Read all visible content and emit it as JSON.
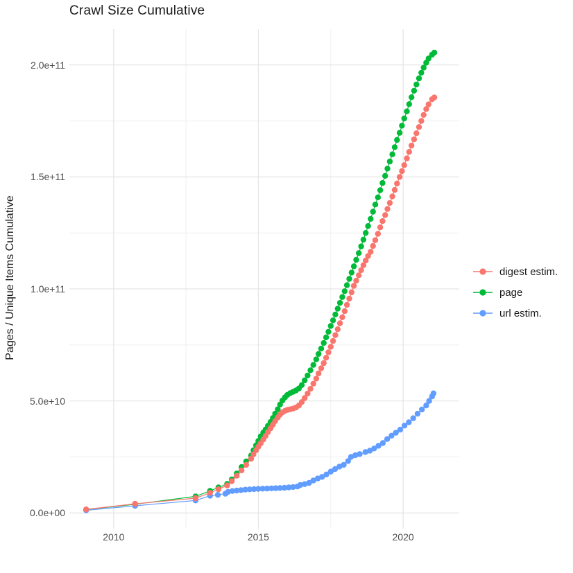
{
  "title": "Crawl Size Cumulative",
  "y_axis": {
    "label": "Pages / Unique Items Cumulative",
    "tick_labels": [
      "0.0e+00",
      "5.0e+10",
      "1.0e+11",
      "1.5e+11",
      "2.0e+11"
    ],
    "tick_values": [
      0,
      50,
      100,
      150,
      200
    ],
    "minor_values": [
      25,
      75,
      125,
      175
    ]
  },
  "x_axis": {
    "tick_labels": [
      "2010",
      "2015",
      "2020"
    ],
    "tick_values": [
      2010,
      2015,
      2020
    ],
    "minor_values": [
      2012.5,
      2017.5
    ]
  },
  "legend": {
    "position": "right",
    "items": [
      {
        "id": "digest-estim",
        "label": "digest estim.",
        "color": "#F8766D"
      },
      {
        "id": "page",
        "label": "page",
        "color": "#00BA38"
      },
      {
        "id": "url-estim",
        "label": "url estim.",
        "color": "#619CFF"
      }
    ]
  },
  "colors": {
    "background": "#FFFFFF",
    "grid_major": "#E4E4E4",
    "grid_minor": "#EFEFEF",
    "tick_text": "#4D4D4D",
    "title_text": "#1A1A1A"
  },
  "chart_data": {
    "type": "line",
    "title": "Crawl Size Cumulative",
    "xlabel": "",
    "ylabel": "Pages / Unique Items Cumulative",
    "unit": "pages, billions (1e9); y tick 50 = 5.0e+10",
    "xlim": [
      2008.47,
      2021.94
    ],
    "ylim": [
      -7,
      216
    ],
    "grid": true,
    "legend_position": "right",
    "point_radius": 4.2,
    "draw_order": [
      "page",
      "url estim.",
      "digest estim."
    ],
    "series": [
      {
        "name": "page",
        "id": "page",
        "color": "#00BA38",
        "points": [
          [
            2009.05,
            1.5
          ],
          [
            2010.74,
            3.9
          ],
          [
            2012.83,
            7.4
          ],
          [
            2013.33,
            9.9
          ],
          [
            2013.62,
            11.4
          ],
          [
            2013.92,
            13
          ],
          [
            2014.08,
            15
          ],
          [
            2014.25,
            17.6
          ],
          [
            2014.42,
            20.5
          ],
          [
            2014.58,
            23
          ],
          [
            2014.75,
            25.7
          ],
          [
            2014.83,
            28
          ],
          [
            2014.92,
            30.2
          ],
          [
            2015,
            32.2
          ],
          [
            2015.08,
            34.2
          ],
          [
            2015.17,
            35.9
          ],
          [
            2015.25,
            37.3
          ],
          [
            2015.33,
            38.9
          ],
          [
            2015.42,
            40.6
          ],
          [
            2015.5,
            42.4
          ],
          [
            2015.58,
            44.3
          ],
          [
            2015.67,
            46.3
          ],
          [
            2015.75,
            48.4
          ],
          [
            2015.83,
            50.2
          ],
          [
            2015.92,
            51.6
          ],
          [
            2016,
            52.7
          ],
          [
            2016.1,
            53.5
          ],
          [
            2016.2,
            54.1
          ],
          [
            2016.3,
            54.7
          ],
          [
            2016.4,
            55.6
          ],
          [
            2016.5,
            57.1
          ],
          [
            2016.6,
            59.2
          ],
          [
            2016.7,
            61.4
          ],
          [
            2016.8,
            63.7
          ],
          [
            2016.9,
            66.1
          ],
          [
            2017,
            68.6
          ],
          [
            2017.08,
            71
          ],
          [
            2017.17,
            73.4
          ],
          [
            2017.26,
            75.9
          ],
          [
            2017.34,
            78.4
          ],
          [
            2017.42,
            80.9
          ],
          [
            2017.5,
            83.5
          ],
          [
            2017.58,
            86
          ],
          [
            2017.66,
            88.6
          ],
          [
            2017.74,
            91.2
          ],
          [
            2017.82,
            93.8
          ],
          [
            2017.9,
            96.4
          ],
          [
            2017.98,
            99
          ],
          [
            2018.06,
            101.7
          ],
          [
            2018.14,
            104.5
          ],
          [
            2018.22,
            107.3
          ],
          [
            2018.3,
            110.1
          ],
          [
            2018.38,
            113
          ],
          [
            2018.47,
            116
          ],
          [
            2018.55,
            119
          ],
          [
            2018.63,
            122
          ],
          [
            2018.71,
            125
          ],
          [
            2018.79,
            128.1
          ],
          [
            2018.88,
            131.3
          ],
          [
            2018.96,
            134.5
          ],
          [
            2019.04,
            137.7
          ],
          [
            2019.13,
            140.9
          ],
          [
            2019.21,
            144.1
          ],
          [
            2019.29,
            147.3
          ],
          [
            2019.38,
            150.5
          ],
          [
            2019.46,
            153.7
          ],
          [
            2019.54,
            156.9
          ],
          [
            2019.63,
            160.1
          ],
          [
            2019.71,
            163.3
          ],
          [
            2019.79,
            166.5
          ],
          [
            2019.88,
            169.7
          ],
          [
            2019.96,
            172.9
          ],
          [
            2020.04,
            176.1
          ],
          [
            2020.13,
            179.3
          ],
          [
            2020.21,
            182.5
          ],
          [
            2020.29,
            185.6
          ],
          [
            2020.38,
            188.5
          ],
          [
            2020.46,
            191.3
          ],
          [
            2020.55,
            194
          ],
          [
            2020.63,
            196.5
          ],
          [
            2020.71,
            198.8
          ],
          [
            2020.8,
            201
          ],
          [
            2020.88,
            202.9
          ],
          [
            2021,
            204.6
          ],
          [
            2021.08,
            205.5
          ]
        ]
      },
      {
        "name": "url estim.",
        "id": "url-estim",
        "color": "#619CFF",
        "points": [
          [
            2009.05,
            1.2
          ],
          [
            2010.74,
            3.2
          ],
          [
            2012.83,
            5.6
          ],
          [
            2013.33,
            7.7
          ],
          [
            2013.6,
            8.1
          ],
          [
            2013.86,
            8.6
          ],
          [
            2013.95,
            9.4
          ],
          [
            2014.1,
            9.8
          ],
          [
            2014.25,
            10
          ],
          [
            2014.4,
            10.2
          ],
          [
            2014.55,
            10.4
          ],
          [
            2014.7,
            10.55
          ],
          [
            2014.85,
            10.65
          ],
          [
            2015,
            10.75
          ],
          [
            2015.15,
            10.85
          ],
          [
            2015.3,
            10.9
          ],
          [
            2015.45,
            11
          ],
          [
            2015.6,
            11.05
          ],
          [
            2015.75,
            11.15
          ],
          [
            2015.9,
            11.25
          ],
          [
            2016.05,
            11.4
          ],
          [
            2016.2,
            11.6
          ],
          [
            2016.35,
            11.8
          ],
          [
            2016.45,
            12.5
          ],
          [
            2016.6,
            12.9
          ],
          [
            2016.75,
            13.4
          ],
          [
            2016.9,
            14.5
          ],
          [
            2017.05,
            15.4
          ],
          [
            2017.2,
            16.1
          ],
          [
            2017.35,
            17.2
          ],
          [
            2017.5,
            18.5
          ],
          [
            2017.65,
            19.6
          ],
          [
            2017.8,
            20.7
          ],
          [
            2017.95,
            21.5
          ],
          [
            2018.1,
            23.2
          ],
          [
            2018.2,
            25
          ],
          [
            2018.35,
            25.8
          ],
          [
            2018.5,
            26.3
          ],
          [
            2018.7,
            27.2
          ],
          [
            2018.85,
            27.8
          ],
          [
            2019,
            28.8
          ],
          [
            2019.15,
            30
          ],
          [
            2019.3,
            31.2
          ],
          [
            2019.45,
            33
          ],
          [
            2019.6,
            34.5
          ],
          [
            2019.75,
            35.8
          ],
          [
            2019.9,
            37.2
          ],
          [
            2020.05,
            39
          ],
          [
            2020.2,
            40.5
          ],
          [
            2020.35,
            42.3
          ],
          [
            2020.5,
            44.3
          ],
          [
            2020.65,
            46.2
          ],
          [
            2020.8,
            48
          ],
          [
            2020.9,
            50
          ],
          [
            2021,
            52
          ],
          [
            2021.05,
            53.4
          ]
        ]
      },
      {
        "name": "digest estim.",
        "id": "digest-estim",
        "color": "#F8766D",
        "points": [
          [
            2009.05,
            1.6
          ],
          [
            2010.74,
            4.1
          ],
          [
            2012.83,
            6.6
          ],
          [
            2013.33,
            9
          ],
          [
            2013.62,
            10.6
          ],
          [
            2013.92,
            12.3
          ],
          [
            2014.08,
            14.2
          ],
          [
            2014.25,
            16.6
          ],
          [
            2014.42,
            19
          ],
          [
            2014.58,
            21.5
          ],
          [
            2014.75,
            24.2
          ],
          [
            2014.83,
            26.2
          ],
          [
            2014.92,
            28
          ],
          [
            2015,
            29.6
          ],
          [
            2015.08,
            31.1
          ],
          [
            2015.17,
            32.8
          ],
          [
            2015.25,
            34.4
          ],
          [
            2015.33,
            36.1
          ],
          [
            2015.42,
            37.8
          ],
          [
            2015.5,
            39.4
          ],
          [
            2015.58,
            41
          ],
          [
            2015.67,
            42.6
          ],
          [
            2015.75,
            43.9
          ],
          [
            2015.83,
            44.9
          ],
          [
            2015.92,
            45.6
          ],
          [
            2016,
            46
          ],
          [
            2016.1,
            46.3
          ],
          [
            2016.2,
            46.6
          ],
          [
            2016.3,
            47.1
          ],
          [
            2016.4,
            48
          ],
          [
            2016.5,
            49.5
          ],
          [
            2016.6,
            51.3
          ],
          [
            2016.7,
            53.3
          ],
          [
            2016.8,
            55.4
          ],
          [
            2016.9,
            57.7
          ],
          [
            2017,
            60
          ],
          [
            2017.08,
            62.3
          ],
          [
            2017.17,
            64.6
          ],
          [
            2017.26,
            66.9
          ],
          [
            2017.34,
            69.3
          ],
          [
            2017.42,
            71.7
          ],
          [
            2017.5,
            74.2
          ],
          [
            2017.58,
            76.8
          ],
          [
            2017.66,
            79.4
          ],
          [
            2017.74,
            82
          ],
          [
            2017.82,
            84.7
          ],
          [
            2017.9,
            87.4
          ],
          [
            2017.98,
            90.1
          ],
          [
            2018.06,
            92.9
          ],
          [
            2018.14,
            95.7
          ],
          [
            2018.22,
            98.5
          ],
          [
            2018.3,
            101.4
          ],
          [
            2018.38,
            103.7
          ],
          [
            2018.47,
            106.1
          ],
          [
            2018.55,
            108.4
          ],
          [
            2018.63,
            110.6
          ],
          [
            2018.71,
            112.7
          ],
          [
            2018.79,
            114.7
          ],
          [
            2018.88,
            116.6
          ],
          [
            2018.96,
            119.2
          ],
          [
            2019.04,
            121.8
          ],
          [
            2019.13,
            124.6
          ],
          [
            2019.21,
            127.5
          ],
          [
            2019.29,
            130.3
          ],
          [
            2019.38,
            133
          ],
          [
            2019.46,
            135.7
          ],
          [
            2019.54,
            138.4
          ],
          [
            2019.63,
            141.3
          ],
          [
            2019.71,
            144.2
          ],
          [
            2019.79,
            147.1
          ],
          [
            2019.88,
            150
          ],
          [
            2019.96,
            152.6
          ],
          [
            2020.04,
            155.3
          ],
          [
            2020.13,
            158.3
          ],
          [
            2020.21,
            161.2
          ],
          [
            2020.29,
            164
          ],
          [
            2020.38,
            166.8
          ],
          [
            2020.46,
            169.5
          ],
          [
            2020.55,
            172.3
          ],
          [
            2020.63,
            175
          ],
          [
            2020.71,
            177.7
          ],
          [
            2020.8,
            180.3
          ],
          [
            2020.88,
            182.4
          ],
          [
            2021,
            184.7
          ],
          [
            2021.08,
            185.5
          ]
        ]
      }
    ]
  }
}
